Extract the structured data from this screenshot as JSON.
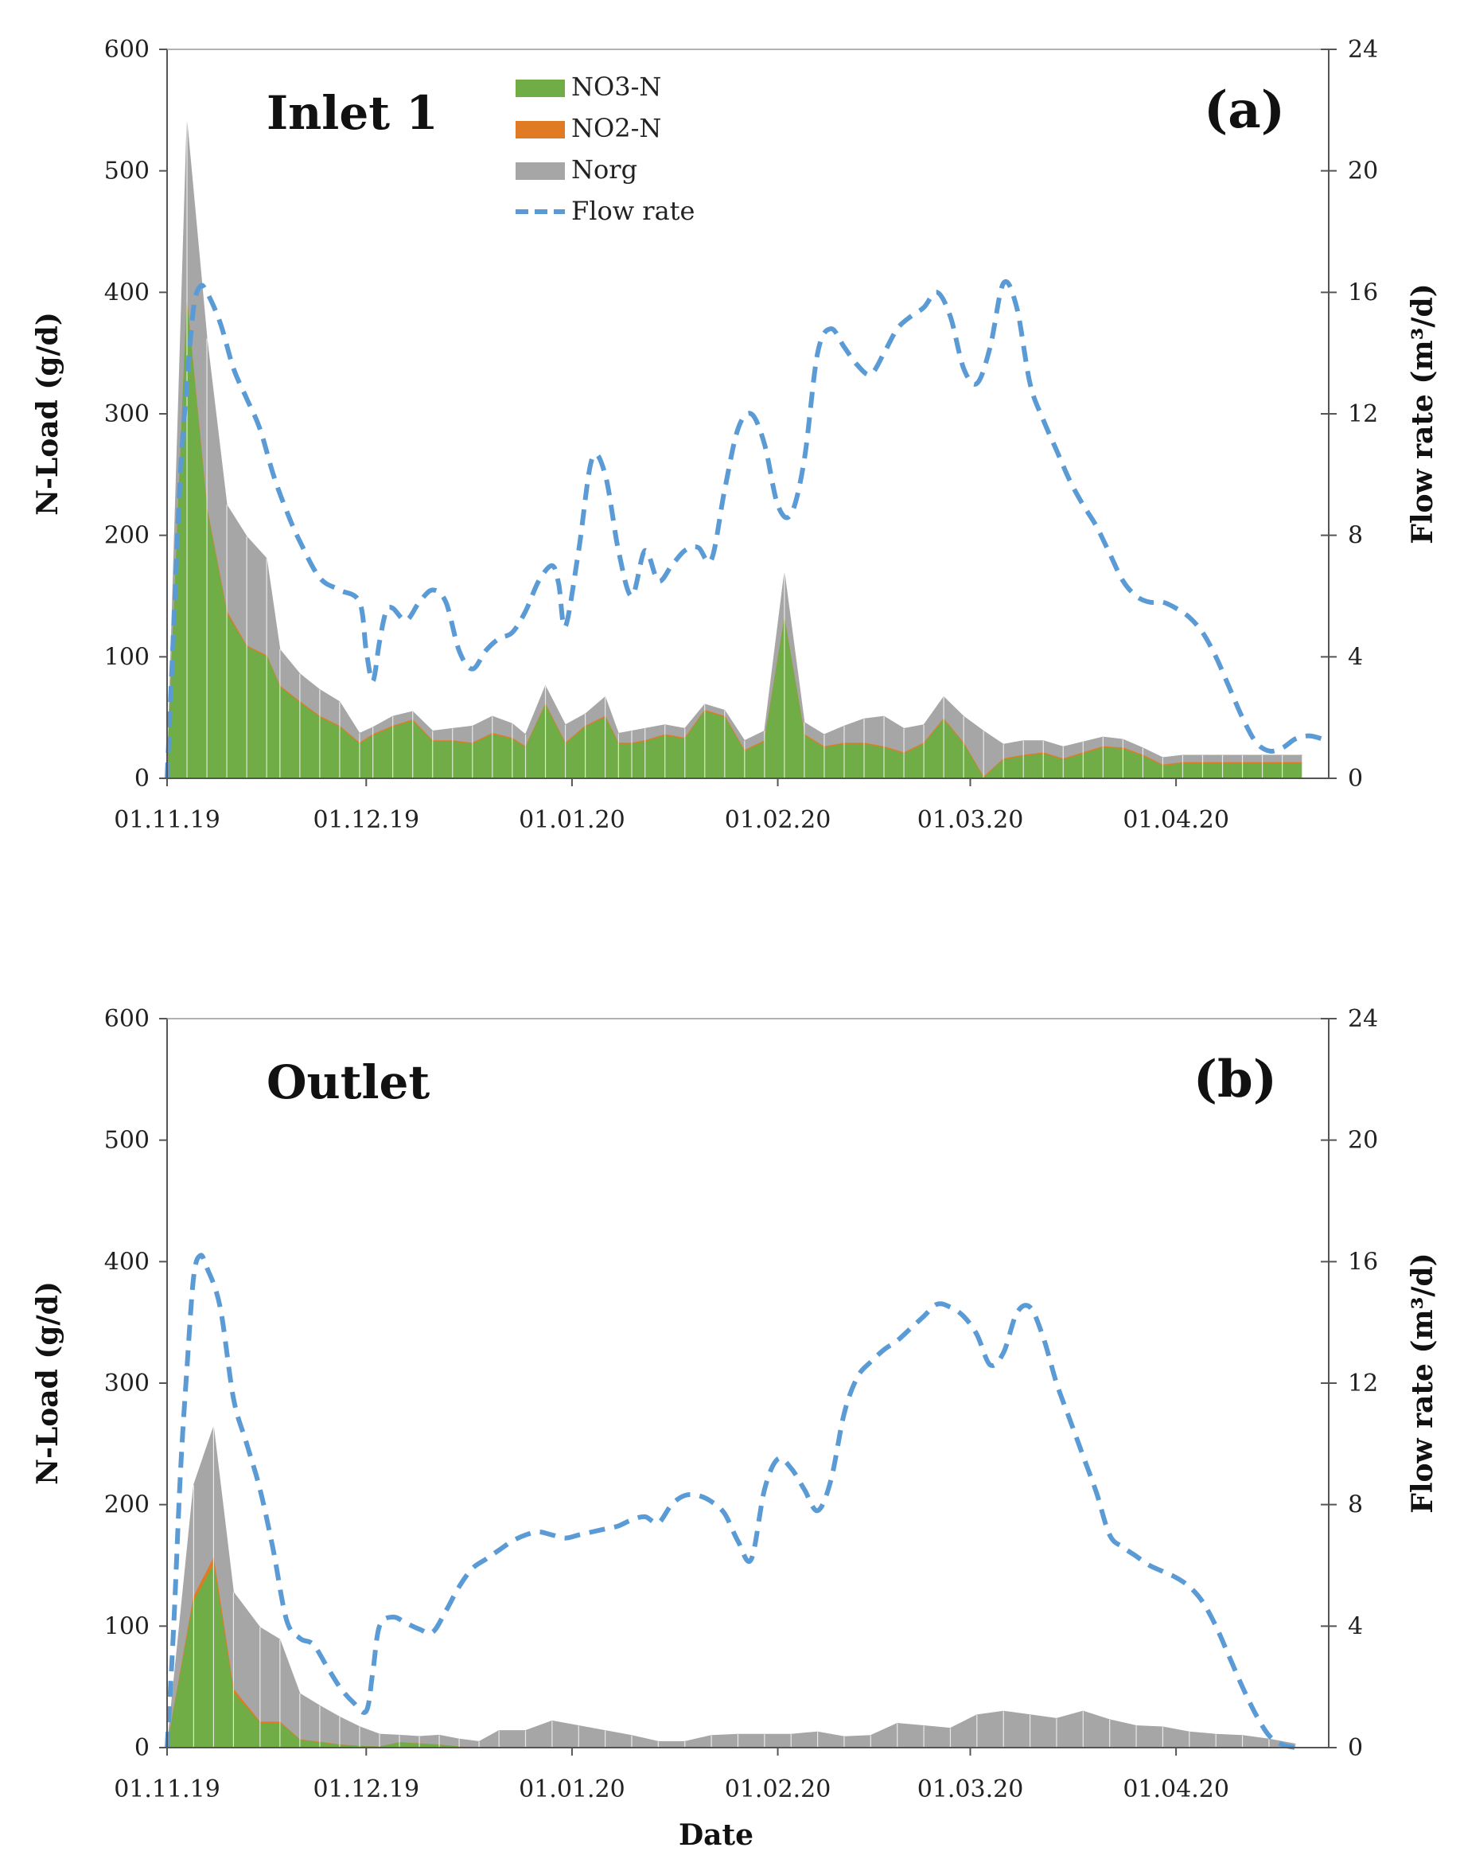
{
  "chart_data": [
    {
      "type": "area",
      "panel_title": "Inlet 1",
      "panel_label": "(a)",
      "xlabel": "",
      "ylabel": "N-Load (g/d)",
      "y2label": "Flow rate (m³/d)",
      "ylim": [
        0,
        600
      ],
      "y2lim": [
        0,
        24
      ],
      "yticks": [
        0,
        100,
        200,
        300,
        400,
        500,
        600
      ],
      "y2ticks": [
        0,
        4,
        8,
        12,
        16,
        20,
        24
      ],
      "xlim": [
        0,
        175
      ],
      "xticks": [
        {
          "day": 0,
          "label": "01.11.19"
        },
        {
          "day": 30,
          "label": "01.12.19"
        },
        {
          "day": 61,
          "label": "01.01.20"
        },
        {
          "day": 92,
          "label": "01.02.20"
        },
        {
          "day": 121,
          "label": "01.03.20"
        },
        {
          "day": 152,
          "label": "01.04.20"
        }
      ],
      "legend": [
        {
          "label": "NO3-N",
          "key": "no3"
        },
        {
          "label": "NO2-N",
          "key": "no2"
        },
        {
          "label": "Norg",
          "key": "norg"
        },
        {
          "label": "Flow rate",
          "key": "flow"
        }
      ],
      "load_days": [
        0,
        3,
        6,
        9,
        12,
        15,
        17,
        20,
        23,
        26,
        29,
        31,
        34,
        37,
        40,
        43,
        46,
        49,
        52,
        54,
        57,
        60,
        63,
        66,
        68,
        70,
        72,
        75,
        78,
        81,
        84,
        87,
        90,
        93,
        96,
        99,
        102,
        105,
        108,
        111,
        114,
        117,
        120,
        123,
        126,
        129,
        132,
        135,
        138,
        141,
        144,
        147,
        150,
        153,
        156,
        159,
        162,
        165,
        168,
        171
      ],
      "series": [
        {
          "name": "NO3-N",
          "key": "no3",
          "values": [
            0,
            390,
            220,
            135,
            108,
            100,
            75,
            62,
            50,
            42,
            28,
            35,
            42,
            47,
            30,
            30,
            28,
            36,
            32,
            25,
            60,
            28,
            42,
            50,
            28,
            28,
            30,
            35,
            32,
            55,
            50,
            22,
            30,
            130,
            35,
            25,
            28,
            28,
            25,
            20,
            28,
            48,
            28,
            0,
            15,
            18,
            20,
            15,
            20,
            25,
            24,
            18,
            10,
            12,
            12,
            12,
            12,
            12,
            12,
            12
          ]
        },
        {
          "name": "NO2-N",
          "key": "no2",
          "values": [
            0,
            2,
            2,
            2,
            1,
            1,
            1,
            1,
            1,
            1,
            1,
            1,
            1,
            1,
            1,
            1,
            1,
            1,
            1,
            1,
            1,
            1,
            1,
            1,
            1,
            1,
            1,
            1,
            1,
            1,
            1,
            1,
            1,
            1,
            1,
            1,
            1,
            1,
            1,
            1,
            1,
            1,
            1,
            1,
            1,
            1,
            1,
            1,
            1,
            1,
            1,
            1,
            1,
            1,
            1,
            1,
            1,
            1,
            1,
            1
          ]
        },
        {
          "name": "Norg",
          "key": "norg",
          "values": [
            0,
            148,
            140,
            88,
            90,
            80,
            30,
            23,
            22,
            20,
            8,
            6,
            8,
            7,
            8,
            10,
            14,
            14,
            12,
            10,
            15,
            15,
            10,
            16,
            8,
            10,
            10,
            8,
            8,
            5,
            5,
            8,
            8,
            38,
            10,
            10,
            14,
            20,
            25,
            20,
            15,
            18,
            22,
            38,
            12,
            12,
            10,
            10,
            9,
            8,
            7,
            6,
            6,
            6,
            6,
            6,
            6,
            6,
            6,
            6
          ]
        }
      ],
      "flow_days": [
        0,
        1,
        2,
        3,
        4,
        5,
        6,
        8,
        10,
        12,
        14,
        16,
        18,
        20,
        23,
        26,
        29,
        30,
        31,
        32,
        33,
        34,
        36,
        38,
        40,
        42,
        44,
        46,
        48,
        50,
        52,
        54,
        56,
        58,
        59,
        60,
        62,
        64,
        66,
        68,
        70,
        72,
        74,
        76,
        78,
        80,
        82,
        84,
        86,
        88,
        90,
        92,
        94,
        96,
        98,
        100,
        102,
        104,
        106,
        108,
        110,
        112,
        114,
        116,
        118,
        120,
        122,
        124,
        126,
        128,
        130,
        132,
        134,
        136,
        138,
        140,
        142,
        144,
        146,
        148,
        150,
        152,
        154,
        156,
        158,
        160,
        162,
        164,
        166,
        168,
        170,
        172,
        174
      ],
      "flow_values": [
        0,
        5,
        10,
        13,
        15.5,
        16.2,
        16,
        15,
        13.5,
        12.5,
        11.5,
        10,
        8.8,
        7.8,
        6.6,
        6.2,
        5.8,
        4.2,
        3.2,
        4.5,
        5.5,
        5.6,
        5.2,
        5.8,
        6.2,
        5.8,
        4.2,
        3.6,
        4.2,
        4.6,
        4.8,
        5.5,
        6.5,
        7.0,
        6.4,
        5.0,
        7.5,
        10.5,
        10.0,
        7.5,
        6.0,
        7.5,
        6.5,
        7.0,
        7.5,
        7.6,
        7.2,
        9.5,
        11.5,
        12.0,
        11.0,
        9.0,
        8.7,
        10.5,
        14.0,
        14.8,
        14.2,
        13.6,
        13.3,
        14.0,
        14.8,
        15.2,
        15.5,
        16.0,
        15.2,
        13.5,
        13.0,
        14.2,
        16.3,
        15.5,
        13.0,
        11.8,
        10.8,
        9.8,
        9.0,
        8.3,
        7.4,
        6.5,
        6.0,
        5.8,
        5.8,
        5.6,
        5.3,
        4.8,
        4.0,
        3.0,
        2.0,
        1.2,
        0.9,
        1.0,
        1.3,
        1.4,
        1.3
      ]
    },
    {
      "type": "area",
      "panel_title": "Outlet",
      "panel_label": "(b)",
      "xlabel": "Date",
      "ylabel": "N-Load (g/d)",
      "y2label": "Flow rate (m³/d)",
      "ylim": [
        0,
        600
      ],
      "y2lim": [
        0,
        24
      ],
      "yticks": [
        0,
        100,
        200,
        300,
        400,
        500,
        600
      ],
      "y2ticks": [
        0,
        4,
        8,
        12,
        16,
        20,
        24
      ],
      "xlim": [
        0,
        175
      ],
      "xticks": [
        {
          "day": 0,
          "label": "01.11.19"
        },
        {
          "day": 30,
          "label": "01.12.19"
        },
        {
          "day": 61,
          "label": "01.01.20"
        },
        {
          "day": 92,
          "label": "01.02.20"
        },
        {
          "day": 121,
          "label": "01.03.20"
        },
        {
          "day": 152,
          "label": "01.04.20"
        }
      ],
      "load_days": [
        0,
        4,
        7,
        10,
        14,
        17,
        20,
        23,
        26,
        29,
        32,
        35,
        38,
        41,
        44,
        47,
        50,
        54,
        58,
        62,
        66,
        70,
        74,
        78,
        82,
        86,
        90,
        94,
        98,
        102,
        106,
        110,
        114,
        118,
        122,
        126,
        130,
        134,
        138,
        142,
        146,
        150,
        154,
        158,
        162,
        166,
        170
      ],
      "series": [
        {
          "name": "NO3-N",
          "key": "no3",
          "values": [
            0,
            120,
            150,
            45,
            20,
            20,
            6,
            4,
            2,
            1,
            0.5,
            4,
            3,
            2,
            0.5,
            0,
            0,
            0,
            0,
            0,
            0,
            0,
            0,
            0,
            0,
            0,
            0,
            0,
            0,
            0,
            0,
            0,
            0,
            0,
            0,
            0,
            0,
            0,
            0,
            0,
            0,
            0,
            0,
            0,
            0,
            0,
            0
          ]
        },
        {
          "name": "NO2-N",
          "key": "no2",
          "values": [
            0,
            4,
            6,
            3,
            1,
            1,
            0.5,
            0.5,
            0.3,
            0.2,
            0.1,
            0.2,
            0.2,
            0.2,
            0.1,
            0,
            0,
            0,
            0,
            0,
            0,
            0,
            0,
            0,
            0,
            0,
            0,
            0,
            0,
            0,
            0,
            0,
            0,
            0,
            0,
            0,
            0,
            0,
            0,
            0,
            0,
            0,
            0,
            0,
            0,
            0,
            0
          ]
        },
        {
          "name": "Norg",
          "key": "norg",
          "values": [
            0,
            92,
            108,
            80,
            78,
            68,
            38,
            30,
            23,
            16,
            10.5,
            6,
            6,
            8,
            6.5,
            5,
            14,
            14,
            22,
            18,
            14,
            10,
            5,
            5,
            10,
            11,
            11,
            11,
            13,
            9,
            10,
            20,
            18,
            16,
            27,
            30,
            27,
            24,
            30,
            23,
            18,
            17,
            13,
            11,
            10,
            7,
            3
          ]
        }
      ],
      "flow_days": [
        0,
        1,
        2,
        3,
        4,
        5,
        6,
        8,
        10,
        12,
        14,
        16,
        18,
        20,
        22,
        24,
        26,
        28,
        30,
        31,
        32,
        34,
        36,
        38,
        40,
        42,
        44,
        46,
        48,
        50,
        52,
        54,
        56,
        58,
        60,
        62,
        64,
        66,
        68,
        70,
        72,
        74,
        76,
        78,
        80,
        82,
        84,
        86,
        88,
        90,
        92,
        94,
        96,
        98,
        100,
        102,
        104,
        106,
        108,
        110,
        112,
        114,
        116,
        118,
        120,
        122,
        124,
        126,
        128,
        130,
        132,
        134,
        136,
        138,
        140,
        142,
        144,
        146,
        148,
        150,
        152,
        154,
        156,
        158,
        160,
        162,
        164,
        166,
        168,
        170,
        171
      ],
      "flow_values": [
        0,
        4,
        9,
        12.5,
        15.5,
        16.2,
        15.8,
        14.5,
        11.5,
        10.0,
        8.5,
        6.5,
        4.2,
        3.6,
        3.4,
        2.7,
        2.0,
        1.5,
        1.2,
        2.5,
        4.0,
        4.3,
        4.1,
        3.9,
        3.8,
        4.5,
        5.3,
        5.9,
        6.2,
        6.5,
        6.8,
        7.0,
        7.1,
        7.0,
        6.9,
        7.0,
        7.1,
        7.2,
        7.3,
        7.5,
        7.6,
        7.4,
        8.0,
        8.3,
        8.3,
        8.1,
        7.7,
        6.8,
        6.2,
        8.5,
        9.5,
        9.2,
        8.5,
        7.8,
        8.8,
        11.0,
        12.2,
        12.7,
        13.1,
        13.4,
        13.8,
        14.2,
        14.6,
        14.5,
        14.2,
        13.6,
        12.6,
        13.0,
        14.3,
        14.5,
        13.5,
        12.0,
        10.8,
        9.6,
        8.4,
        7.0,
        6.6,
        6.3,
        6.0,
        5.8,
        5.6,
        5.3,
        4.8,
        4.0,
        3.0,
        2.0,
        1.1,
        0.4,
        0.1,
        0,
        0
      ]
    }
  ],
  "colors": {
    "no3": "#70ad47",
    "no2": "#e07b24",
    "norg": "#a6a6a6",
    "flow": "#5b9bd5",
    "axis": "#555555"
  }
}
